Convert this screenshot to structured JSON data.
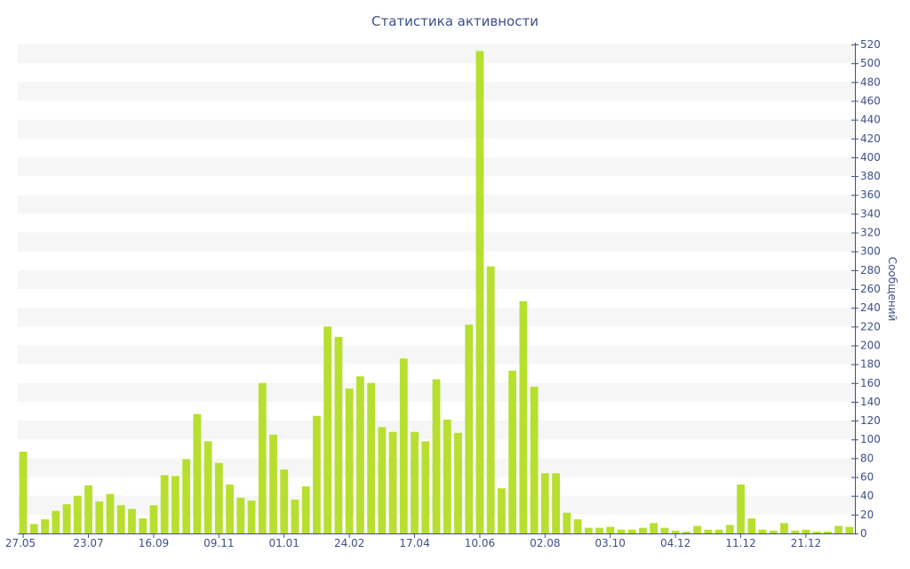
{
  "chart_data": {
    "type": "bar",
    "title": "Статистика активности",
    "xlabel": "",
    "ylabel": "Сообщений",
    "ylim": [
      0,
      520
    ],
    "ytick_step": 20,
    "y_axis_side": "right",
    "grid": "alternating horizontal bands",
    "bar_color": "#b7df2f",
    "band_color": "#f6f6f6",
    "text_color": "#3d4f8a",
    "values": [
      87,
      10,
      15,
      24,
      31,
      40,
      51,
      34,
      42,
      30,
      26,
      16,
      30,
      62,
      61,
      79,
      127,
      98,
      75,
      52,
      38,
      35,
      160,
      105,
      68,
      36,
      50,
      125,
      220,
      209,
      154,
      167,
      160,
      113,
      108,
      186,
      108,
      98,
      164,
      121,
      107,
      222,
      513,
      284,
      48,
      173,
      247,
      156,
      64,
      64,
      22,
      15,
      6,
      6,
      7,
      4,
      4,
      6,
      11,
      6,
      3,
      2,
      8,
      4,
      4,
      9,
      52,
      16,
      4,
      3,
      11,
      3,
      4,
      2,
      2,
      8,
      7
    ],
    "x_tick_labels": [
      {
        "label": "27.05",
        "index": 0
      },
      {
        "label": "23.07",
        "index": 6
      },
      {
        "label": "16.09",
        "index": 12
      },
      {
        "label": "09.11",
        "index": 18
      },
      {
        "label": "01.01",
        "index": 24
      },
      {
        "label": "24.02",
        "index": 30
      },
      {
        "label": "17.04",
        "index": 36
      },
      {
        "label": "10.06",
        "index": 42
      },
      {
        "label": "02.08",
        "index": 48
      },
      {
        "label": "03.10",
        "index": 54
      },
      {
        "label": "04.12",
        "index": 60
      },
      {
        "label": "11.12",
        "index": 66
      },
      {
        "label": "21.12",
        "index": 72
      }
    ]
  }
}
